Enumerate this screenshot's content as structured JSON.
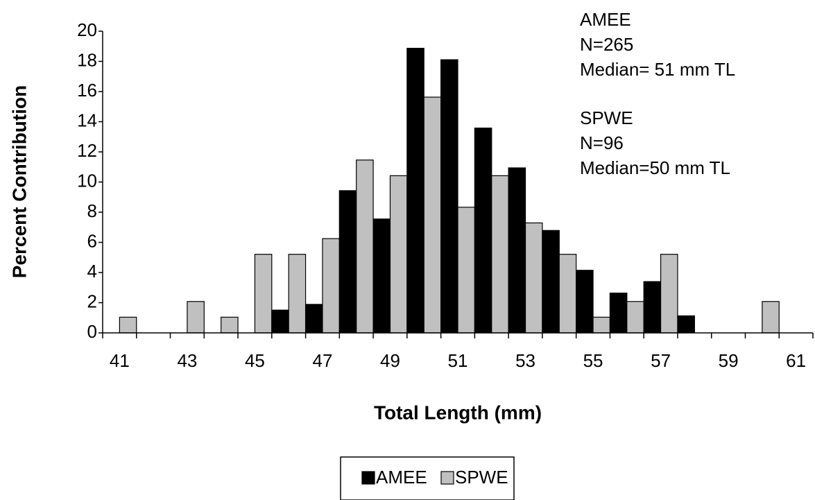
{
  "chart_data": {
    "type": "bar",
    "x_label": "Total Length (mm)",
    "y_label": "Percent Contribution",
    "categories": [
      "41",
      null,
      "43",
      null,
      "45",
      null,
      "47",
      null,
      "49",
      null,
      "51",
      null,
      "53",
      null,
      "55",
      null,
      "57",
      null,
      "59",
      null,
      "61"
    ],
    "series": [
      {
        "name": "AMEE",
        "color": "#000000",
        "values": [
          0,
          0,
          0,
          0,
          0,
          1.51,
          1.89,
          9.43,
          7.55,
          18.87,
          18.11,
          13.58,
          10.94,
          6.79,
          4.15,
          2.64,
          3.4,
          1.13,
          0,
          0,
          0
        ]
      },
      {
        "name": "SPWE",
        "color": "#c0c0c0",
        "values": [
          1.04,
          0,
          2.08,
          1.04,
          5.21,
          5.21,
          6.25,
          11.46,
          10.42,
          15.63,
          8.33,
          10.42,
          7.29,
          5.21,
          1.04,
          2.08,
          5.21,
          0,
          0,
          2.08,
          0
        ]
      }
    ],
    "annotations": [
      "AMEE",
      "N=265",
      "Median= 51 mm TL",
      "SPWE",
      "N=96",
      "Median=50 mm TL"
    ],
    "ylim": [
      0,
      20
    ],
    "yticks": [
      0,
      2,
      4,
      6,
      8,
      10,
      12,
      14,
      16,
      18,
      20
    ],
    "legend": "bottom"
  }
}
